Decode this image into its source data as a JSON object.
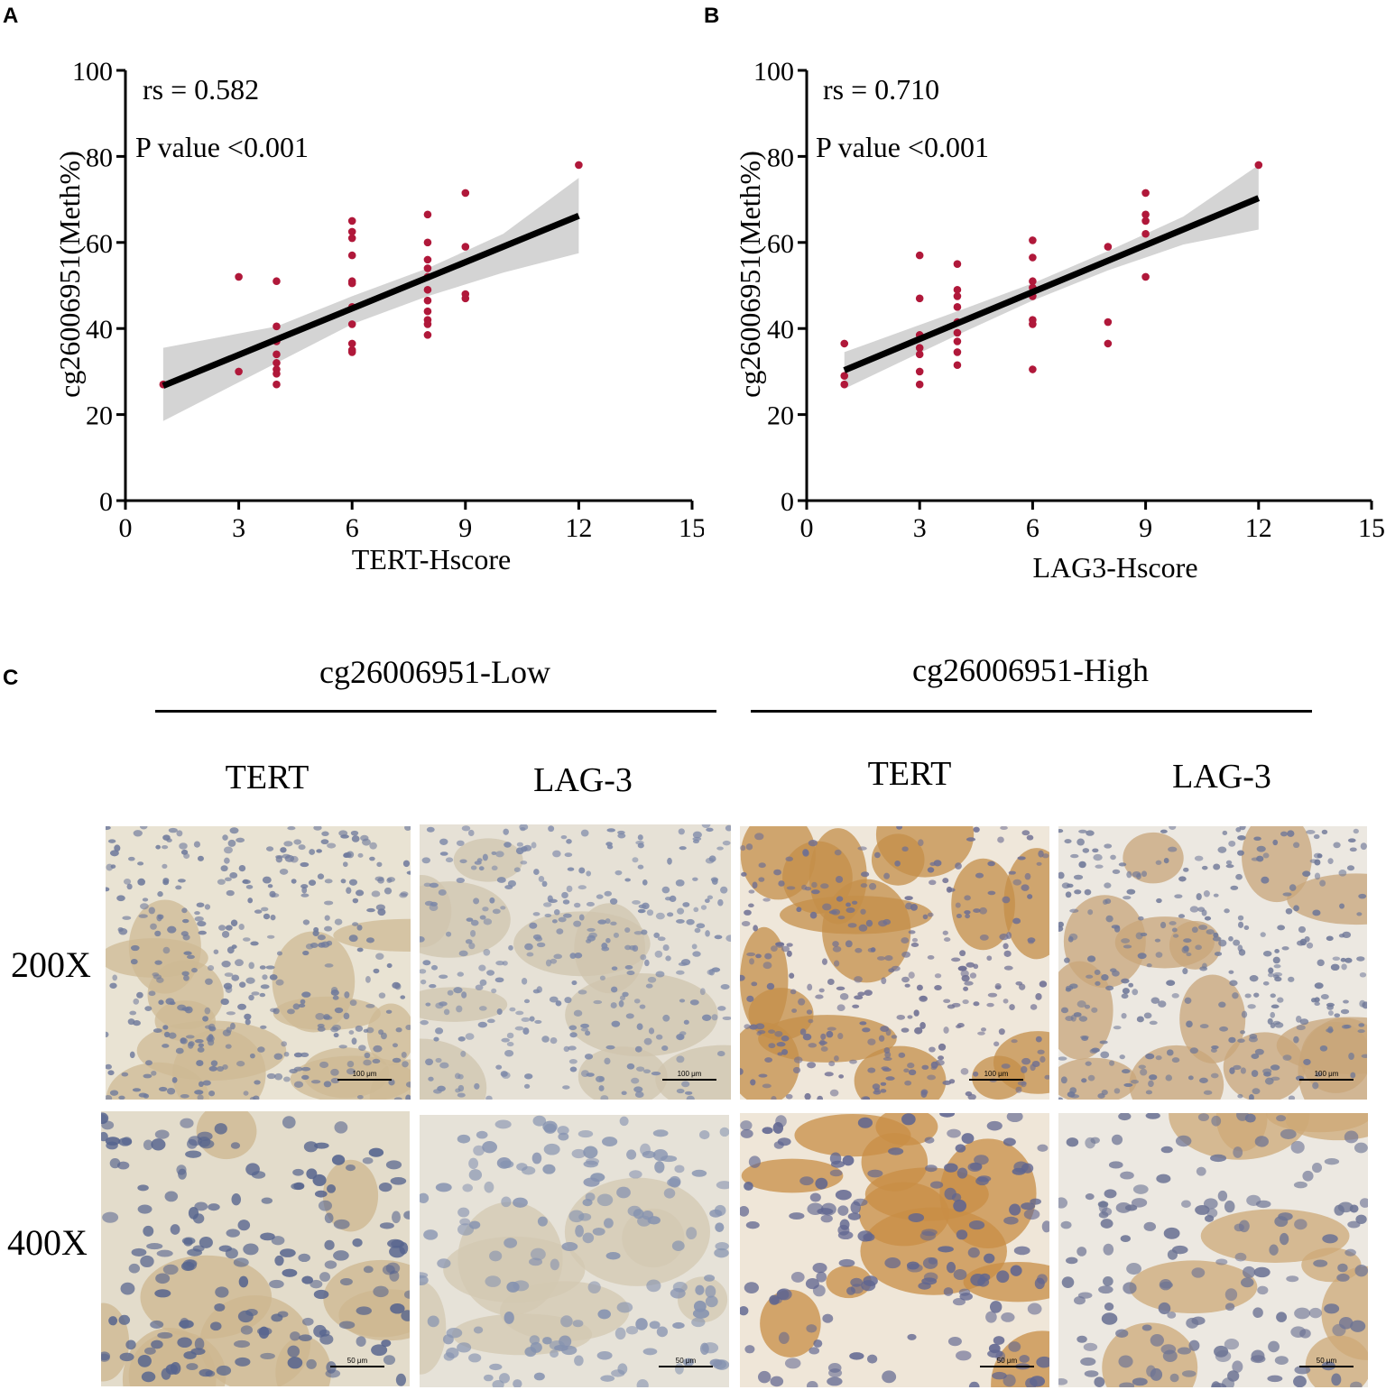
{
  "panels": {
    "a_letter": "A",
    "b_letter": "B",
    "c_letter": "C"
  },
  "chart_data": [
    {
      "panel": "A",
      "type": "scatter",
      "xlabel": "TERT-Hscore",
      "ylabel": "cg26006951(Meth%)",
      "xlim": [
        0,
        15
      ],
      "ylim": [
        0,
        100
      ],
      "xticks": [
        0,
        3,
        6,
        9,
        12,
        15
      ],
      "yticks": [
        0,
        20,
        40,
        60,
        80,
        100
      ],
      "annotations": [
        "rs = 0.582",
        "P value <0.001"
      ],
      "colors": {
        "points": "#b0183a",
        "line": "#000000",
        "band": "#d4d4d4"
      },
      "points": [
        {
          "x": 1,
          "y": 27
        },
        {
          "x": 3,
          "y": 52
        },
        {
          "x": 3,
          "y": 30
        },
        {
          "x": 4,
          "y": 51
        },
        {
          "x": 4,
          "y": 40.5
        },
        {
          "x": 4,
          "y": 37
        },
        {
          "x": 4,
          "y": 34
        },
        {
          "x": 4,
          "y": 32
        },
        {
          "x": 4,
          "y": 30.5
        },
        {
          "x": 4,
          "y": 29.5
        },
        {
          "x": 4,
          "y": 27
        },
        {
          "x": 6,
          "y": 65
        },
        {
          "x": 6,
          "y": 62.5
        },
        {
          "x": 6,
          "y": 61
        },
        {
          "x": 6,
          "y": 57
        },
        {
          "x": 6,
          "y": 51
        },
        {
          "x": 6,
          "y": 50.5
        },
        {
          "x": 6,
          "y": 45
        },
        {
          "x": 6,
          "y": 41
        },
        {
          "x": 6,
          "y": 36.5
        },
        {
          "x": 6,
          "y": 35
        },
        {
          "x": 6,
          "y": 34.5
        },
        {
          "x": 8,
          "y": 66.5
        },
        {
          "x": 8,
          "y": 60
        },
        {
          "x": 8,
          "y": 56
        },
        {
          "x": 8,
          "y": 54
        },
        {
          "x": 8,
          "y": 52
        },
        {
          "x": 8,
          "y": 49
        },
        {
          "x": 8,
          "y": 46.5
        },
        {
          "x": 8,
          "y": 44
        },
        {
          "x": 8,
          "y": 42
        },
        {
          "x": 8,
          "y": 41
        },
        {
          "x": 8,
          "y": 38.5
        },
        {
          "x": 9,
          "y": 71.5
        },
        {
          "x": 9,
          "y": 59
        },
        {
          "x": 9,
          "y": 48
        },
        {
          "x": 9,
          "y": 47
        },
        {
          "x": 12,
          "y": 78
        }
      ],
      "fit": {
        "x": [
          1,
          12
        ],
        "y": [
          26.7,
          66.2
        ]
      },
      "band": {
        "x": [
          1,
          4,
          6,
          8,
          10,
          12
        ],
        "lower": [
          18.5,
          32,
          41,
          47.5,
          53,
          57.5
        ],
        "upper": [
          35.5,
          40.5,
          47.5,
          54,
          62,
          75
        ]
      }
    },
    {
      "panel": "B",
      "type": "scatter",
      "xlabel": "LAG3-Hscore",
      "ylabel": "cg26006951(Meth%)",
      "xlim": [
        0,
        15
      ],
      "ylim": [
        0,
        100
      ],
      "xticks": [
        0,
        3,
        6,
        9,
        12,
        15
      ],
      "yticks": [
        0,
        20,
        40,
        60,
        80,
        100
      ],
      "annotations": [
        "rs = 0.710",
        "P value <0.001"
      ],
      "colors": {
        "points": "#b0183a",
        "line": "#000000",
        "band": "#d4d4d4"
      },
      "points": [
        {
          "x": 1,
          "y": 36.5
        },
        {
          "x": 1,
          "y": 29
        },
        {
          "x": 1,
          "y": 27
        },
        {
          "x": 3,
          "y": 57
        },
        {
          "x": 3,
          "y": 47
        },
        {
          "x": 3,
          "y": 38.5
        },
        {
          "x": 3,
          "y": 35.5
        },
        {
          "x": 3,
          "y": 34
        },
        {
          "x": 3,
          "y": 30
        },
        {
          "x": 3,
          "y": 27
        },
        {
          "x": 4,
          "y": 55
        },
        {
          "x": 4,
          "y": 49
        },
        {
          "x": 4,
          "y": 47.5
        },
        {
          "x": 4,
          "y": 45
        },
        {
          "x": 4,
          "y": 41.5
        },
        {
          "x": 4,
          "y": 39
        },
        {
          "x": 4,
          "y": 37
        },
        {
          "x": 4,
          "y": 34.5
        },
        {
          "x": 4,
          "y": 31.5
        },
        {
          "x": 6,
          "y": 60.5
        },
        {
          "x": 6,
          "y": 56.5
        },
        {
          "x": 6,
          "y": 51
        },
        {
          "x": 6,
          "y": 49.5
        },
        {
          "x": 6,
          "y": 47.5
        },
        {
          "x": 6,
          "y": 42
        },
        {
          "x": 6,
          "y": 41
        },
        {
          "x": 6,
          "y": 30.5
        },
        {
          "x": 8,
          "y": 59
        },
        {
          "x": 8,
          "y": 41.5
        },
        {
          "x": 8,
          "y": 36.5
        },
        {
          "x": 9,
          "y": 71.5
        },
        {
          "x": 9,
          "y": 66.5
        },
        {
          "x": 9,
          "y": 65
        },
        {
          "x": 9,
          "y": 62
        },
        {
          "x": 9,
          "y": 52
        },
        {
          "x": 12,
          "y": 78
        }
      ],
      "fit": {
        "x": [
          1,
          12
        ],
        "y": [
          30.3,
          70.3
        ]
      },
      "band": {
        "x": [
          1,
          4,
          6,
          8,
          10,
          12
        ],
        "lower": [
          26,
          38.5,
          46.5,
          53.5,
          59.5,
          63
        ],
        "upper": [
          34.5,
          44,
          50.5,
          58,
          66,
          78
        ]
      }
    }
  ],
  "panel_c": {
    "groups": [
      "cg26006951-Low",
      "cg26006951-High"
    ],
    "columns": [
      "TERT",
      "LAG-3",
      "TERT",
      "LAG-3"
    ],
    "rows": [
      "200X",
      "400X"
    ],
    "scalebars": [
      "100 μm",
      "50 μm"
    ]
  }
}
